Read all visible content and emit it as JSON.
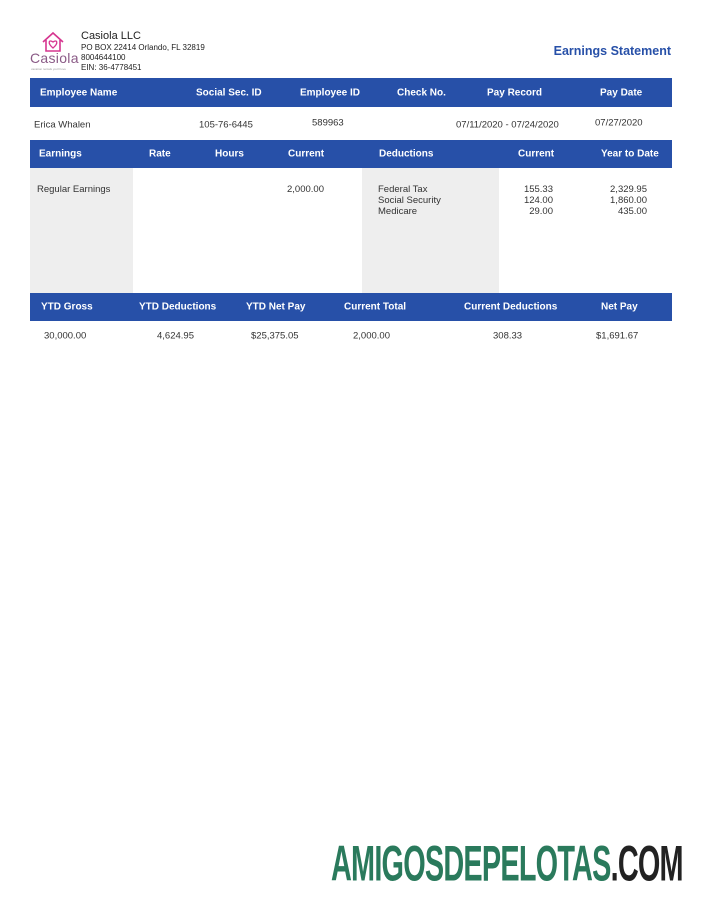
{
  "company": {
    "logo_text": "Casiola",
    "logo_tagline": "vacation rentals you'll love",
    "name": "Casiola LLC",
    "address": "PO BOX 22414 Orlando, FL 32819",
    "phone": "8004644100",
    "ein": "EIN: 36-4778451"
  },
  "title": "Earnings Statement",
  "colors": {
    "header_blue": "#2750a8",
    "title_blue": "#2750a8",
    "logo_pink": "#d6358f",
    "watermark_green": "#2a7a5c"
  },
  "employee_header": [
    "Employee Name",
    "Social Sec. ID",
    "Employee ID",
    "Check No.",
    "Pay Record",
    "Pay Date"
  ],
  "employee_row": [
    "Erica Whalen",
    "105-76-6445",
    "589963",
    "",
    "07/11/2020 - 07/24/2020",
    "07/27/2020"
  ],
  "earnings_header": [
    "Earnings",
    "Rate",
    "Hours",
    "Current",
    "Deductions",
    "Current",
    "Year to Date"
  ],
  "earnings": {
    "label": "Regular Earnings",
    "rate": "",
    "hours": "",
    "current": "2,000.00"
  },
  "deductions": [
    {
      "name": "Federal Tax",
      "current": "155.33",
      "ytd": "2,329.95"
    },
    {
      "name": "Social Security",
      "current": "124.00",
      "ytd": "1,860.00"
    },
    {
      "name": "Medicare",
      "current": "29.00",
      "ytd": "435.00"
    }
  ],
  "summary_header": [
    "YTD Gross",
    "YTD Deductions",
    "YTD Net Pay",
    "Current Total",
    "Current Deductions",
    "Net Pay"
  ],
  "summary_row": [
    "30,000.00",
    "4,624.95",
    "$25,375.05",
    "2,000.00",
    "308.33",
    "$1,691.67"
  ],
  "watermark": {
    "main": "AMIGOSDEPELOTAS",
    "suffix": ".COM"
  }
}
